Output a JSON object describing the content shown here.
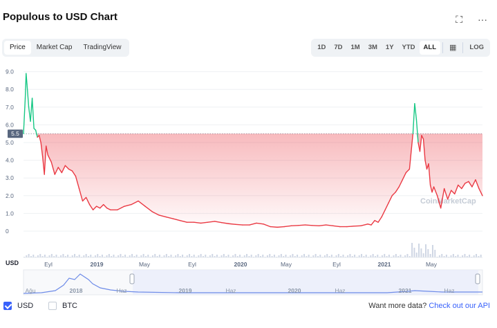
{
  "header": {
    "title": "Populous to USD Chart",
    "expand_icon": "expand-icon",
    "more_icon": "more-icon",
    "expand_glyph": "⛶",
    "more_glyph": "···"
  },
  "tabs": [
    {
      "label": "Price",
      "active": true
    },
    {
      "label": "Market Cap",
      "active": false
    },
    {
      "label": "TradingView",
      "active": false
    }
  ],
  "ranges": [
    {
      "label": "1D",
      "active": false
    },
    {
      "label": "7D",
      "active": false
    },
    {
      "label": "1M",
      "active": false
    },
    {
      "label": "3M",
      "active": false
    },
    {
      "label": "1Y",
      "active": false
    },
    {
      "label": "YTD",
      "active": false
    },
    {
      "label": "ALL",
      "active": true
    }
  ],
  "calendar_icon": "calendar-icon",
  "calendar_glyph": "▦",
  "log_label": "LOG",
  "colors": {
    "up": "#16c784",
    "down": "#ea3943",
    "accent": "#3861fb"
  },
  "chart_data": {
    "type": "line",
    "y_ticks": [
      "9.0",
      "8.0",
      "7.0",
      "6.0",
      "5.0",
      "4.0",
      "3.0",
      "2.0",
      "1.0",
      "0"
    ],
    "ylim": [
      0,
      9
    ],
    "reference_value": 5.5,
    "reference_label": "5.5",
    "y_unit": "USD",
    "x_ticks": [
      "Eyl",
      "2019",
      "May",
      "Eyl",
      "2020",
      "May",
      "Eyl",
      "2021",
      "May"
    ],
    "x_ticks_bold": [
      "2019",
      "2020",
      "2021"
    ],
    "navigator_ticks": [
      "Ağu",
      "2018",
      "Haz",
      "2019",
      "Haz",
      "2020",
      "Haz",
      "2021",
      "Haz"
    ],
    "navigator_ticks_bold": [
      "2018",
      "2019",
      "2020",
      "2021"
    ],
    "watermark": "CoinMarketCap",
    "series": [
      {
        "values": [
          [
            0,
            5.5
          ],
          [
            1,
            7.5
          ],
          [
            1.5,
            8.9
          ],
          [
            2,
            8.3
          ],
          [
            3,
            7.0
          ],
          [
            4,
            6.2
          ],
          [
            5,
            7.5
          ],
          [
            6,
            5.8
          ],
          [
            7,
            5.7
          ],
          [
            8,
            5.3
          ],
          [
            9,
            5.4
          ],
          [
            10,
            5.0
          ],
          [
            11,
            4.2
          ],
          [
            12,
            3.2
          ],
          [
            13,
            4.8
          ],
          [
            14,
            4.3
          ],
          [
            16,
            3.9
          ],
          [
            18,
            3.2
          ],
          [
            20,
            3.6
          ],
          [
            22,
            3.3
          ],
          [
            24,
            3.7
          ],
          [
            26,
            3.5
          ],
          [
            28,
            3.4
          ],
          [
            30,
            3.1
          ],
          [
            32,
            2.4
          ],
          [
            34,
            1.7
          ],
          [
            36,
            1.9
          ],
          [
            38,
            1.5
          ],
          [
            40,
            1.2
          ],
          [
            42,
            1.4
          ],
          [
            44,
            1.3
          ],
          [
            46,
            1.5
          ],
          [
            48,
            1.3
          ],
          [
            50,
            1.2
          ],
          [
            54,
            1.2
          ],
          [
            58,
            1.4
          ],
          [
            62,
            1.5
          ],
          [
            66,
            1.7
          ],
          [
            70,
            1.4
          ],
          [
            74,
            1.1
          ],
          [
            78,
            0.9
          ],
          [
            82,
            0.8
          ],
          [
            86,
            0.7
          ],
          [
            90,
            0.6
          ],
          [
            94,
            0.5
          ],
          [
            98,
            0.5
          ],
          [
            102,
            0.45
          ],
          [
            106,
            0.5
          ],
          [
            110,
            0.55
          ],
          [
            114,
            0.48
          ],
          [
            118,
            0.42
          ],
          [
            122,
            0.38
          ],
          [
            126,
            0.35
          ],
          [
            130,
            0.35
          ],
          [
            134,
            0.45
          ],
          [
            138,
            0.4
          ],
          [
            142,
            0.25
          ],
          [
            146,
            0.22
          ],
          [
            150,
            0.25
          ],
          [
            154,
            0.3
          ],
          [
            158,
            0.32
          ],
          [
            162,
            0.35
          ],
          [
            166,
            0.32
          ],
          [
            170,
            0.3
          ],
          [
            174,
            0.35
          ],
          [
            178,
            0.3
          ],
          [
            182,
            0.25
          ],
          [
            186,
            0.25
          ],
          [
            190,
            0.28
          ],
          [
            194,
            0.3
          ],
          [
            198,
            0.4
          ],
          [
            200,
            0.35
          ],
          [
            202,
            0.6
          ],
          [
            204,
            0.5
          ],
          [
            206,
            0.8
          ],
          [
            208,
            1.2
          ],
          [
            210,
            1.6
          ],
          [
            212,
            2.0
          ],
          [
            214,
            2.2
          ],
          [
            216,
            2.5
          ],
          [
            218,
            2.9
          ],
          [
            220,
            3.3
          ],
          [
            222,
            3.5
          ],
          [
            223,
            4.5
          ],
          [
            224,
            5.5
          ],
          [
            225,
            7.2
          ],
          [
            226,
            6.3
          ],
          [
            227,
            5.0
          ],
          [
            228,
            4.5
          ],
          [
            229,
            5.4
          ],
          [
            230,
            5.2
          ],
          [
            231,
            4.0
          ],
          [
            232,
            3.5
          ],
          [
            233,
            3.8
          ],
          [
            234,
            2.6
          ],
          [
            235,
            2.2
          ],
          [
            236,
            2.5
          ],
          [
            238,
            2.0
          ],
          [
            240,
            1.3
          ],
          [
            242,
            2.4
          ],
          [
            244,
            1.8
          ],
          [
            246,
            2.3
          ],
          [
            248,
            2.1
          ],
          [
            250,
            2.6
          ],
          [
            252,
            2.4
          ],
          [
            254,
            2.7
          ],
          [
            256,
            2.8
          ],
          [
            258,
            2.5
          ],
          [
            260,
            2.9
          ],
          [
            262,
            2.4
          ],
          [
            264,
            2.0
          ]
        ]
      }
    ]
  },
  "footer": {
    "usd_label": "USD",
    "btc_label": "BTC",
    "usd_checked": true,
    "btc_checked": false,
    "more_text": "Want more data?",
    "more_link": "Check out our API"
  }
}
